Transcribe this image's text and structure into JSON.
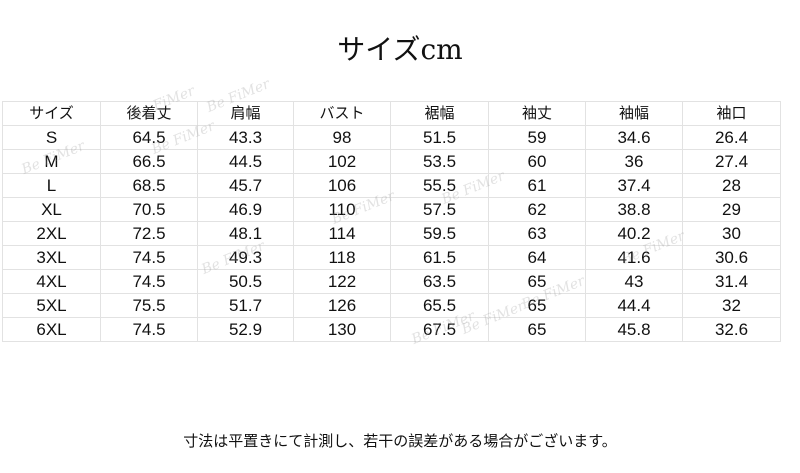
{
  "title": "サイズcm",
  "watermark": "Be FiMer",
  "table": {
    "headers": [
      "サイズ",
      "後着丈",
      "肩幅",
      "バスト",
      "裾幅",
      "袖丈",
      "袖幅",
      "袖口"
    ],
    "rows": [
      [
        "S",
        "64.5",
        "43.3",
        "98",
        "51.5",
        "59",
        "34.6",
        "26.4"
      ],
      [
        "M",
        "66.5",
        "44.5",
        "102",
        "53.5",
        "60",
        "36",
        "27.4"
      ],
      [
        "L",
        "68.5",
        "45.7",
        "106",
        "55.5",
        "61",
        "37.4",
        "28"
      ],
      [
        "XL",
        "70.5",
        "46.9",
        "110",
        "57.5",
        "62",
        "38.8",
        "29"
      ],
      [
        "2XL",
        "72.5",
        "48.1",
        "114",
        "59.5",
        "63",
        "40.2",
        "30"
      ],
      [
        "3XL",
        "74.5",
        "49.3",
        "118",
        "61.5",
        "64",
        "41.6",
        "30.6"
      ],
      [
        "4XL",
        "74.5",
        "50.5",
        "122",
        "63.5",
        "65",
        "43",
        "31.4"
      ],
      [
        "5XL",
        "75.5",
        "51.7",
        "126",
        "65.5",
        "65",
        "44.4",
        "32"
      ],
      [
        "6XL",
        "74.5",
        "52.9",
        "130",
        "67.5",
        "65",
        "45.8",
        "32.6"
      ]
    ]
  },
  "note": "寸法は平置きにて計測し、若干の誤差がある場合がございます。"
}
